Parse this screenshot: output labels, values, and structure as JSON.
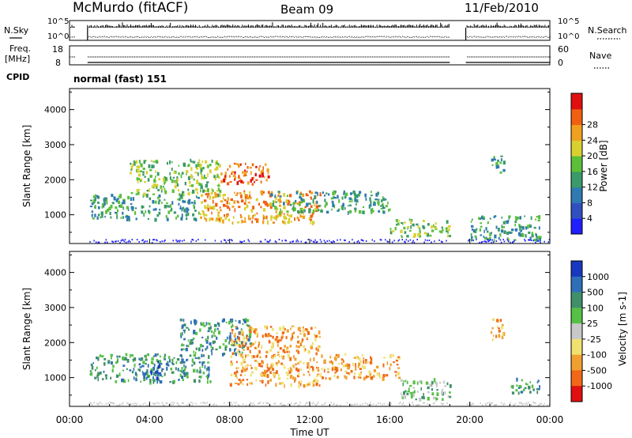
{
  "header": {
    "station": "McMurdo (fitACF)",
    "beam": "Beam 09",
    "date": "11/Feb/2010"
  },
  "labels": {
    "nsky": "N.Sky",
    "freq_line1": "Freq.",
    "freq_line2": "[MHz]",
    "cpid": "CPID",
    "nsearch": "N.Search",
    "nave": "Nave",
    "cpid_mode": "normal (fast) 151",
    "tick_1e5_left": "10^5",
    "tick_1e0_left": "10^0",
    "tick_1e5_right": "10^5",
    "tick_1e0_right": "10^0",
    "freq_hi": "18",
    "freq_lo": "8",
    "nave_hi": "60",
    "nave_lo": "0"
  },
  "chart_data": [
    {
      "type": "heatmap",
      "panel": "power",
      "ylabel": "Slant Range [km]",
      "xlabel": "",
      "ylim": [
        180,
        4600
      ],
      "yticks": [
        1000,
        2000,
        3000,
        4000
      ],
      "colorbar": {
        "label": "Power [dB]",
        "ticks": [
          "4",
          "8",
          "12",
          "16",
          "20",
          "24",
          "28"
        ],
        "colors": [
          "#1f1fff",
          "#3050c0",
          "#2f7ab0",
          "#3a9a6a",
          "#5bbf3a",
          "#d8d030",
          "#f0a020",
          "#f06010",
          "#e01010"
        ]
      },
      "echo_bands": [
        {
          "t0": 1.0,
          "t1": 6.5,
          "r0": 900,
          "r1": 1600,
          "level": 3
        },
        {
          "t0": 3.0,
          "t1": 7.5,
          "r0": 1600,
          "r1": 2600,
          "level": 4
        },
        {
          "t0": 6.5,
          "t1": 12.5,
          "r0": 800,
          "r1": 1700,
          "level": 6
        },
        {
          "t0": 7.5,
          "t1": 10.0,
          "r0": 1900,
          "r1": 2500,
          "level": 7
        },
        {
          "t0": 10.0,
          "t1": 16.0,
          "r0": 1100,
          "r1": 1700,
          "level": 3
        },
        {
          "t0": 16.0,
          "t1": 19.0,
          "r0": 400,
          "r1": 900,
          "level": 4
        },
        {
          "t0": 20.0,
          "t1": 23.5,
          "r0": 300,
          "r1": 1000,
          "level": 3
        },
        {
          "t0": 21.0,
          "t1": 21.7,
          "r0": 2200,
          "r1": 2700,
          "level": 3
        }
      ]
    },
    {
      "type": "heatmap",
      "panel": "velocity",
      "ylabel": "Slant Range [km]",
      "xlabel": "Time UT",
      "ylim": [
        180,
        4600
      ],
      "yticks": [
        1000,
        2000,
        3000,
        4000
      ],
      "xticks": [
        "00:00",
        "04:00",
        "08:00",
        "12:00",
        "16:00",
        "20:00",
        "00:00"
      ],
      "colorbar": {
        "label": "Velocity [m s-1]",
        "ticks": [
          "1000",
          "500",
          "100",
          "25",
          "-25",
          "-100",
          "-500",
          "-1000"
        ],
        "colors": [
          "#1838c0",
          "#2f6fb8",
          "#3f8f6a",
          "#56c046",
          "#c8c8c8",
          "#f0e070",
          "#f0a030",
          "#f06818",
          "#e01010"
        ]
      },
      "echo_bands": [
        {
          "t0": 1.0,
          "t1": 7.0,
          "r0": 900,
          "r1": 1700,
          "level": 2
        },
        {
          "t0": 4.0,
          "t1": 4.6,
          "r0": 1000,
          "r1": 1500,
          "level": 0
        },
        {
          "t0": 5.5,
          "t1": 9.0,
          "r0": 1700,
          "r1": 2700,
          "level": 2
        },
        {
          "t0": 8.0,
          "t1": 12.5,
          "r0": 800,
          "r1": 2500,
          "level": 6
        },
        {
          "t0": 12.5,
          "t1": 16.5,
          "r0": 1000,
          "r1": 1700,
          "level": 6
        },
        {
          "t0": 16.5,
          "t1": 19.0,
          "r0": 400,
          "r1": 1000,
          "level": 3
        },
        {
          "t0": 21.0,
          "t1": 21.7,
          "r0": 2100,
          "r1": 2700,
          "level": 6
        },
        {
          "t0": 22.0,
          "t1": 23.5,
          "r0": 600,
          "r1": 1000,
          "level": 2
        }
      ]
    }
  ],
  "data_gaps": [
    [
      0.3,
      0.9
    ],
    [
      19.0,
      19.8
    ]
  ]
}
